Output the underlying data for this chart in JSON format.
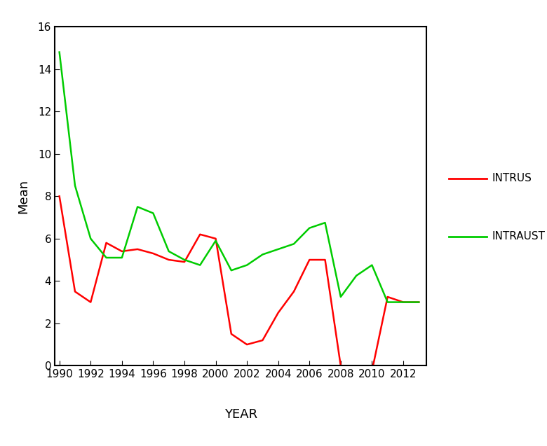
{
  "years": [
    1990,
    1991,
    1992,
    1993,
    1994,
    1995,
    1996,
    1997,
    1998,
    1999,
    2000,
    2001,
    2002,
    2003,
    2004,
    2005,
    2006,
    2007,
    2008,
    2009,
    2010,
    2011,
    2012,
    2013
  ],
  "intrus": [
    8.0,
    3.5,
    3.0,
    5.8,
    5.4,
    5.5,
    5.3,
    5.0,
    4.9,
    6.2,
    6.0,
    1.5,
    1.0,
    1.2,
    2.5,
    3.5,
    5.0,
    5.0,
    0.0,
    -0.25,
    -0.25,
    3.25,
    3.0,
    3.0
  ],
  "intraust": [
    14.8,
    8.5,
    6.0,
    5.1,
    5.1,
    7.5,
    7.2,
    5.4,
    5.0,
    4.75,
    5.9,
    4.5,
    4.75,
    5.25,
    5.5,
    5.75,
    6.5,
    6.75,
    3.25,
    4.25,
    4.75,
    3.0,
    3.0,
    3.0
  ],
  "intrus_color": "#ff0000",
  "intraust_color": "#00cc00",
  "ylabel": "Mean",
  "xlabel": "YEAR",
  "ylim": [
    0,
    16
  ],
  "xlim_min": 1989.7,
  "xlim_max": 2013.5,
  "yticks": [
    0,
    2,
    4,
    6,
    8,
    10,
    12,
    14,
    16
  ],
  "xticks": [
    1990,
    1992,
    1994,
    1996,
    1998,
    2000,
    2002,
    2004,
    2006,
    2008,
    2010,
    2012
  ],
  "legend_labels": [
    "INTRUS",
    "INTRAUST"
  ],
  "linewidth": 1.8,
  "background_color": "#ffffff",
  "magenta_color": "#ff00ff"
}
